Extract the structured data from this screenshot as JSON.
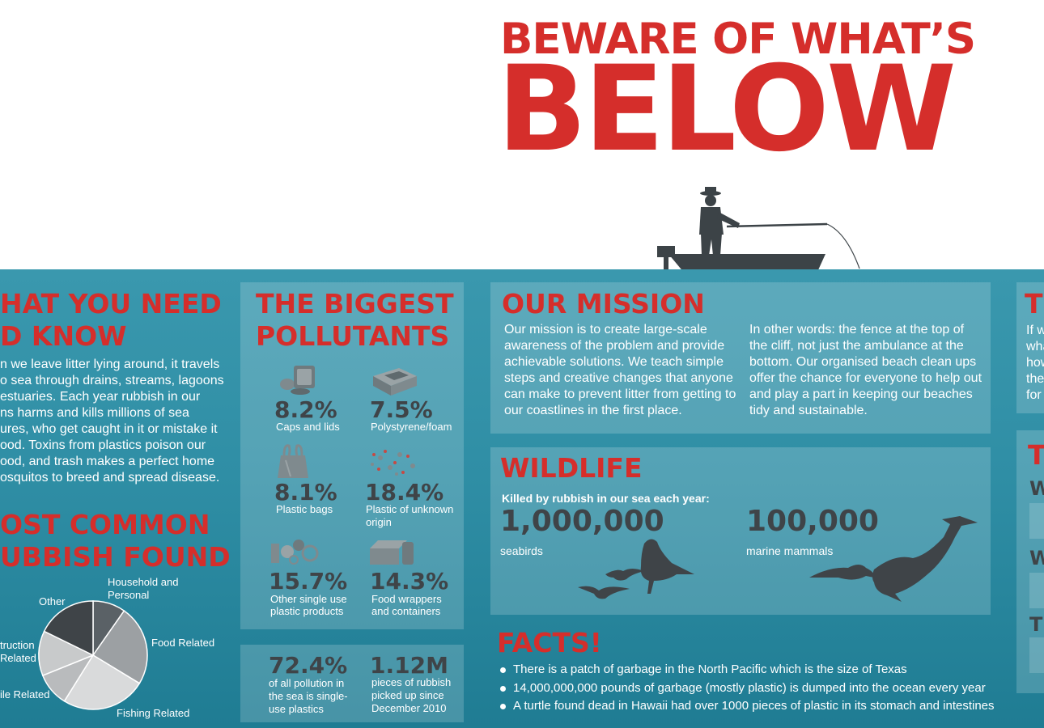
{
  "header": {
    "title_line1": "BEWARE OF WHAT’S",
    "title_line2": "BELOW"
  },
  "need_to_know": {
    "heading_line1": "HAT YOU NEED",
    "heading_line2": "D KNOW",
    "lines": [
      "n we leave litter lying around, it travels",
      "o sea through drains, streams, lagoons",
      "estuaries. Each year rubbish in our",
      "ns harms and kills millions of sea",
      "ures, who get caught in it or mistake it",
      "ood. Toxins from plastics poison our",
      "ood, and trash makes a perfect home",
      "osquitos to breed and spread disease."
    ]
  },
  "common_rubbish": {
    "heading_line1": "OST COMMON",
    "heading_line2": "UBBISH FOUND",
    "labels": {
      "household": "Household and\nPersonal",
      "other": "Other",
      "food": "Food Related",
      "construction": "truction\nRelated",
      "textile": "ile Related",
      "fishing": "Fishing Related"
    }
  },
  "pollutants": {
    "heading_line1": "THE BIGGEST",
    "heading_line2": "POLLUTANTS",
    "items": [
      {
        "percent": "8.2%",
        "label": "Caps and lids",
        "icon": "bottle-caps-icon"
      },
      {
        "percent": "7.5%",
        "label": "Polystyrene/foam",
        "icon": "foam-box-icon"
      },
      {
        "percent": "8.1%",
        "label": "Plastic bags",
        "icon": "plastic-bag-icon"
      },
      {
        "percent": "18.4%",
        "label": "Plastic of unknown\norigin",
        "icon": "plastic-fragments-icon"
      },
      {
        "percent": "15.7%",
        "label": "Other single use\nplastic products",
        "icon": "single-use-plastics-icon"
      },
      {
        "percent": "14.3%",
        "label": "Food wrappers\nand containers",
        "icon": "food-container-icon"
      }
    ]
  },
  "stats": {
    "stat1_value": "72.4%",
    "stat1_label": "of all pollution in\nthe sea is single-\nuse plastics",
    "stat2_value": "1.12M",
    "stat2_label": "pieces of rubbish\npicked up since\nDecember 2010"
  },
  "mission": {
    "heading": "OUR MISSION",
    "col1": "Our mission is to create large-scale awareness of the problem and provide achievable solutions. We teach simple steps and creative changes that anyone can make to prevent litter from getting to our coastlines in the first place.",
    "col2": "In other words: the fence at the top of the cliff, not just the ambulance at the bottom. Our organised beach clean ups offer the chance for everyone to help out and play a part in keeping our beaches tidy and sustainable."
  },
  "wildlife": {
    "heading": "WILDLIFE",
    "subtitle": "Killed by rubbish in our sea each year:",
    "count1": "1,000,000",
    "label1": "seabirds",
    "count2": "100,000",
    "label2": "marine mammals"
  },
  "facts": {
    "heading": "FACTS!",
    "items": [
      "There is a patch of garbage in the North Pacific which is the size of Texas",
      "14,000,000,000 pounds of garbage (mostly plastic) is dumped into the ocean every year",
      "A turtle found dead in Hawaii had over 1000 pieces of plastic in its stomach and intestines"
    ]
  },
  "right_edge": {
    "heading_fragment": "T",
    "lines": [
      "If w",
      "wha",
      "how",
      "the",
      "for"
    ],
    "t2": "T",
    "w1": "W",
    "w2": "W",
    "t3": "T"
  },
  "colors": {
    "accent_red": "#d52e2b",
    "sea_blue": "#2f8ea5",
    "dark_gray": "#3f4448"
  }
}
